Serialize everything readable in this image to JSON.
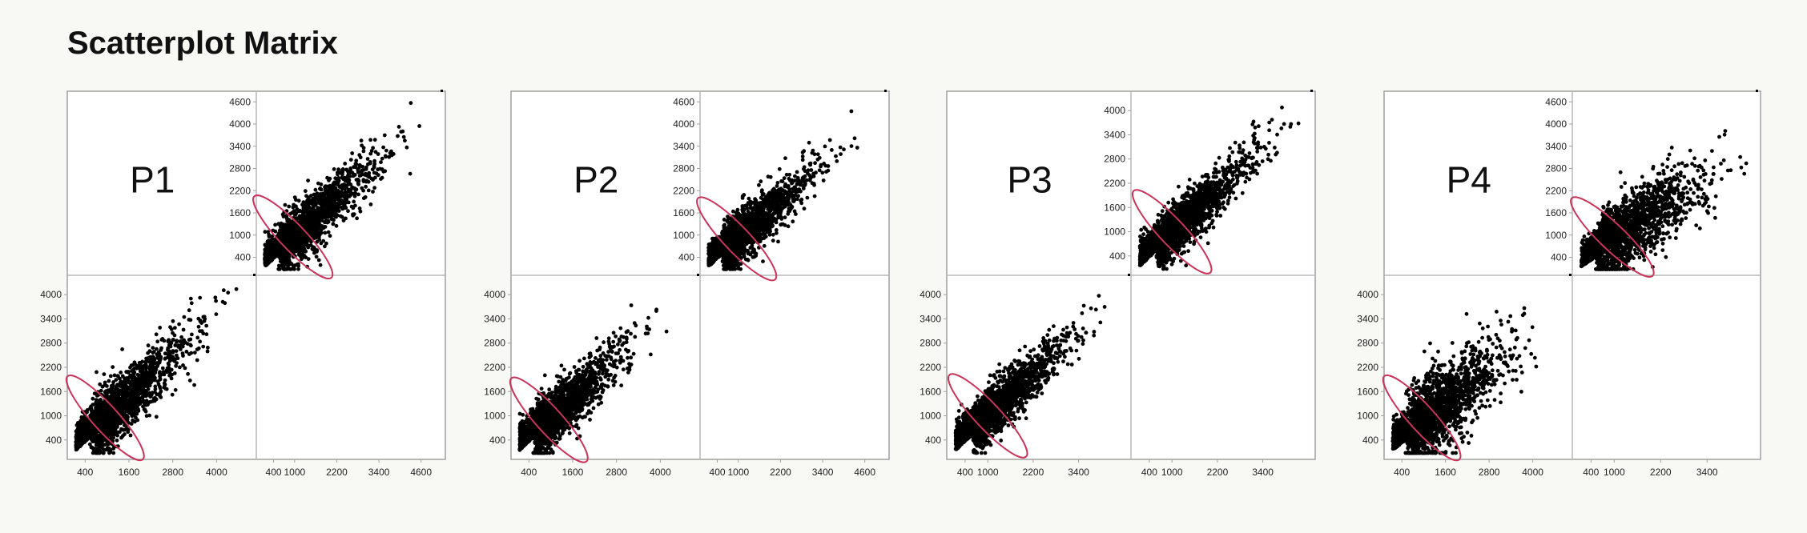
{
  "title": "Scatterplot Matrix",
  "colors": {
    "background": "#f8f8f4",
    "panel_bg": "#ffffff",
    "frame": "#a0a0a0",
    "divider": "#b8b8b8",
    "points": "#000000",
    "ellipse": "#c8355a"
  },
  "chart_data": [
    {
      "type": "scatter",
      "label": "P1",
      "upper_right": {
        "y_ticks": [
          "4600",
          "4000",
          "3400",
          "2800",
          "2200",
          "1600",
          "1000",
          "400"
        ],
        "x_ticks": [
          "400",
          "1000",
          "2200",
          "3400",
          "4600"
        ],
        "xlim": [
          0,
          5200
        ],
        "ylim": [
          0,
          4800
        ],
        "center": [
          600,
          600
        ],
        "spread": [
          1300,
          1300
        ],
        "correlation": 0.85
      },
      "lower_left": {
        "y_ticks": [
          "4000",
          "3400",
          "2800",
          "2200",
          "1600",
          "1000",
          "400"
        ],
        "x_ticks": [
          "400",
          "1600",
          "2800",
          "4000"
        ],
        "xlim": [
          0,
          5000
        ],
        "ylim": [
          0,
          4400
        ],
        "center": [
          600,
          600
        ],
        "spread": [
          1300,
          1300
        ],
        "correlation": 0.85
      }
    },
    {
      "type": "scatter",
      "label": "P2",
      "upper_right": {
        "y_ticks": [
          "4600",
          "4000",
          "3400",
          "2800",
          "2200",
          "1600",
          "1000",
          "400"
        ],
        "x_ticks": [
          "400",
          "1000",
          "2200",
          "3400",
          "4600"
        ],
        "xlim": [
          0,
          5200
        ],
        "ylim": [
          0,
          4800
        ],
        "center": [
          600,
          550
        ],
        "spread": [
          1200,
          1200
        ],
        "correlation": 0.85
      },
      "lower_left": {
        "y_ticks": [
          "4000",
          "3400",
          "2800",
          "2200",
          "1600",
          "1000",
          "400"
        ],
        "x_ticks": [
          "400",
          "1600",
          "2800",
          "4000"
        ],
        "xlim": [
          0,
          5000
        ],
        "ylim": [
          0,
          4400
        ],
        "center": [
          600,
          550
        ],
        "spread": [
          1200,
          1200
        ],
        "correlation": 0.85
      }
    },
    {
      "type": "scatter",
      "label": "P3",
      "upper_right": {
        "y_ticks": [
          "4000",
          "3400",
          "2800",
          "2200",
          "1600",
          "1000",
          "400"
        ],
        "x_ticks": [
          "400",
          "1000",
          "2200",
          "3400"
        ],
        "xlim": [
          0,
          4700
        ],
        "ylim": [
          0,
          4400
        ],
        "center": [
          650,
          650
        ],
        "spread": [
          1200,
          1200
        ],
        "correlation": 0.88
      },
      "lower_left": {
        "y_ticks": [
          "4000",
          "3400",
          "2800",
          "2200",
          "1600",
          "1000",
          "400"
        ],
        "x_ticks": [
          "400",
          "1000",
          "2200",
          "3400"
        ],
        "xlim": [
          0,
          4700
        ],
        "ylim": [
          0,
          4400
        ],
        "center": [
          650,
          650
        ],
        "spread": [
          1200,
          1200
        ],
        "correlation": 0.88
      }
    },
    {
      "type": "scatter",
      "label": "P4",
      "upper_right": {
        "y_ticks": [
          "4600",
          "4000",
          "3400",
          "2800",
          "2200",
          "1600",
          "1000",
          "400"
        ],
        "x_ticks": [
          "400",
          "1000",
          "2200",
          "3400"
        ],
        "xlim": [
          0,
          4700
        ],
        "ylim": [
          0,
          4800
        ],
        "center": [
          600,
          600
        ],
        "spread": [
          1300,
          1300
        ],
        "correlation": 0.7
      },
      "lower_left": {
        "y_ticks": [
          "4000",
          "3400",
          "2800",
          "2200",
          "1600",
          "1000",
          "400"
        ],
        "x_ticks": [
          "400",
          "1600",
          "2800",
          "4000"
        ],
        "xlim": [
          0,
          5000
        ],
        "ylim": [
          0,
          4400
        ],
        "center": [
          600,
          600
        ],
        "spread": [
          1300,
          1300
        ],
        "correlation": 0.7
      }
    }
  ]
}
